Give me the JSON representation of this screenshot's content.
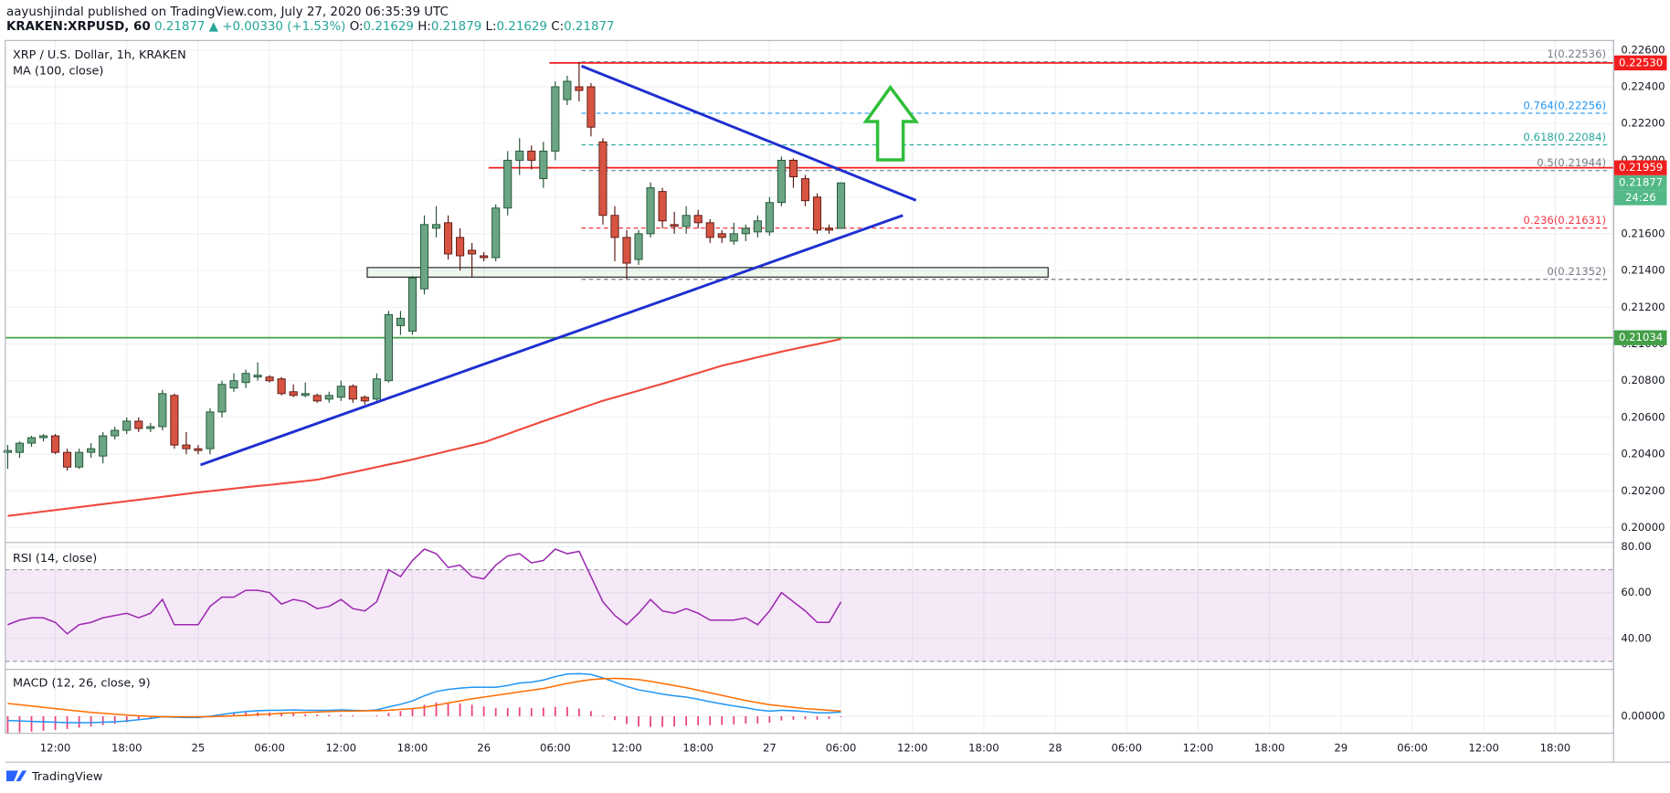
{
  "header": {
    "line1": "aayushjindal published on TradingView.com, July 27, 2020 06:35:39 UTC",
    "symbol": "KRAKEN:XRPUSD, 60",
    "last": "0.21877",
    "change": "▲ +0.00330 (+1.53%)",
    "ohlc": [
      {
        "label": "O:",
        "value": "0.21629"
      },
      {
        "label": "H:",
        "value": "0.21879"
      },
      {
        "label": "L:",
        "value": "0.21629"
      },
      {
        "label": "C:",
        "value": "0.21877"
      }
    ]
  },
  "footer": "TradingView",
  "chart_data": [
    {
      "type": "candlestick",
      "title": "XRP / U.S. Dollar, 1h, KRAKEN",
      "up_color": "#6ba583",
      "down_color": "#d75442",
      "grid": true,
      "open": [
        0.2041,
        0.2041,
        0.2046,
        0.2049,
        0.205,
        0.2041,
        0.2033,
        0.2041,
        0.2039,
        0.205,
        0.2053,
        0.2058,
        0.2054,
        0.2055,
        0.2072,
        0.2045,
        0.2043,
        0.2043,
        0.2063,
        0.2076,
        0.2079,
        0.2082,
        0.2082,
        0.2081,
        0.2074,
        0.2072,
        0.2072,
        0.207,
        0.2071,
        0.2077,
        0.2071,
        0.207,
        0.208,
        0.211,
        0.2107,
        0.213,
        0.2163,
        0.2166,
        0.2158,
        0.2151,
        0.2148,
        0.2147,
        0.2174,
        0.22,
        0.2205,
        0.219,
        0.2205,
        0.2233,
        0.224,
        0.224,
        0.221,
        0.217,
        0.2158,
        0.2146,
        0.216,
        0.2183,
        0.2165,
        0.2164,
        0.217,
        0.2166,
        0.216,
        0.2156,
        0.216,
        0.2161,
        0.2161,
        0.2177,
        0.22,
        0.219,
        0.218,
        0.2163,
        0.21629
      ],
      "high": [
        0.2045,
        0.2047,
        0.205,
        0.2051,
        0.2051,
        0.2043,
        0.2043,
        0.2046,
        0.2052,
        0.2055,
        0.206,
        0.206,
        0.2057,
        0.2075,
        0.2073,
        0.2052,
        0.2045,
        0.2065,
        0.208,
        0.2084,
        0.2086,
        0.209,
        0.2083,
        0.2082,
        0.2078,
        0.2079,
        0.2073,
        0.2074,
        0.208,
        0.2078,
        0.2072,
        0.2084,
        0.2118,
        0.2118,
        0.2137,
        0.217,
        0.2175,
        0.217,
        0.2163,
        0.2155,
        0.215,
        0.2176,
        0.2205,
        0.2212,
        0.2208,
        0.221,
        0.2243,
        0.2246,
        0.22536,
        0.2242,
        0.2212,
        0.2175,
        0.2162,
        0.2162,
        0.2188,
        0.2185,
        0.2172,
        0.2175,
        0.2173,
        0.2168,
        0.2162,
        0.2166,
        0.2165,
        0.217,
        0.218,
        0.2202,
        0.2201,
        0.2192,
        0.2182,
        0.2165,
        0.21879
      ],
      "low": [
        0.2032,
        0.2038,
        0.2044,
        0.2047,
        0.204,
        0.2031,
        0.2032,
        0.2038,
        0.2035,
        0.2048,
        0.2051,
        0.2052,
        0.2052,
        0.2053,
        0.2043,
        0.204,
        0.204,
        0.204,
        0.206,
        0.2074,
        0.2076,
        0.208,
        0.2079,
        0.2072,
        0.2071,
        0.2071,
        0.2068,
        0.2068,
        0.2069,
        0.2068,
        0.2067,
        0.2069,
        0.2079,
        0.2105,
        0.2105,
        0.2127,
        0.2158,
        0.2146,
        0.214,
        0.2136,
        0.2145,
        0.2145,
        0.217,
        0.2192,
        0.2195,
        0.2185,
        0.22,
        0.223,
        0.2232,
        0.2213,
        0.2165,
        0.2145,
        0.21352,
        0.2143,
        0.2158,
        0.2163,
        0.216,
        0.216,
        0.2163,
        0.2155,
        0.2155,
        0.2154,
        0.2156,
        0.2158,
        0.2159,
        0.2175,
        0.2185,
        0.2175,
        0.216,
        0.216,
        0.21629
      ],
      "close": [
        0.2042,
        0.2046,
        0.2049,
        0.205,
        0.2041,
        0.2033,
        0.2041,
        0.2043,
        0.205,
        0.2053,
        0.2058,
        0.2054,
        0.2055,
        0.2073,
        0.2045,
        0.2043,
        0.2042,
        0.2063,
        0.2078,
        0.208,
        0.2084,
        0.2083,
        0.208,
        0.2073,
        0.2072,
        0.2073,
        0.2069,
        0.2072,
        0.2077,
        0.207,
        0.2069,
        0.2081,
        0.2116,
        0.2114,
        0.2136,
        0.2165,
        0.2165,
        0.2149,
        0.2148,
        0.2149,
        0.2147,
        0.2174,
        0.22,
        0.2205,
        0.22,
        0.2205,
        0.224,
        0.2243,
        0.2238,
        0.2218,
        0.217,
        0.2158,
        0.2144,
        0.216,
        0.2185,
        0.2167,
        0.2164,
        0.217,
        0.2166,
        0.2158,
        0.2158,
        0.216,
        0.2163,
        0.2167,
        0.2177,
        0.22,
        0.2191,
        0.2178,
        0.2162,
        0.2162,
        0.21877
      ],
      "overlays": [
        {
          "name": "MA (100, close)",
          "color": "#f0483e",
          "values": [
            0.20064,
            0.20072,
            0.2008,
            0.20088,
            0.20096,
            0.20104,
            0.20112,
            0.2012,
            0.20128,
            0.20136,
            0.20144,
            0.20152,
            0.2016,
            0.20168,
            0.20176,
            0.20184,
            0.20192,
            0.20199,
            0.20206,
            0.20213,
            0.2022,
            0.20227,
            0.20233,
            0.2024,
            0.20247,
            0.20254,
            0.20261,
            0.20275,
            0.20289,
            0.20302,
            0.20316,
            0.2033,
            0.20344,
            0.20357,
            0.20371,
            0.20387,
            0.20402,
            0.20418,
            0.20433,
            0.20449,
            0.20464,
            0.20487,
            0.2051,
            0.20534,
            0.20557,
            0.2058,
            0.20602,
            0.20624,
            0.20647,
            0.20669,
            0.20691,
            0.20709,
            0.20728,
            0.20746,
            0.20765,
            0.20783,
            0.20803,
            0.20823,
            0.20842,
            0.20862,
            0.20882,
            0.20897,
            0.20912,
            0.20928,
            0.20943,
            0.20958,
            0.20972,
            0.20986,
            0.20999,
            0.21013,
            0.21027
          ]
        }
      ],
      "xlim": [
        -0.2,
        134.9
      ],
      "xticks": [
        {
          "value": 4,
          "label": "12:00"
        },
        {
          "value": 10,
          "label": "18:00"
        },
        {
          "value": 16,
          "label": "25"
        },
        {
          "value": 22,
          "label": "06:00"
        },
        {
          "value": 28,
          "label": "12:00"
        },
        {
          "value": 34,
          "label": "18:00"
        },
        {
          "value": 40,
          "label": "26"
        },
        {
          "value": 46,
          "label": "06:00"
        },
        {
          "value": 52,
          "label": "12:00"
        },
        {
          "value": 58,
          "label": "18:00"
        },
        {
          "value": 64,
          "label": "27"
        },
        {
          "value": 70,
          "label": "06:00"
        },
        {
          "value": 76,
          "label": "12:00"
        },
        {
          "value": 82,
          "label": "18:00"
        },
        {
          "value": 88,
          "label": "28"
        },
        {
          "value": 94,
          "label": "06:00"
        },
        {
          "value": 100,
          "label": "12:00"
        },
        {
          "value": 106,
          "label": "18:00"
        },
        {
          "value": 112,
          "label": "29"
        },
        {
          "value": 118,
          "label": "06:00"
        },
        {
          "value": 124,
          "label": "12:00"
        },
        {
          "value": 130,
          "label": "18:00"
        }
      ],
      "ylim": [
        0.19925,
        0.22652
      ],
      "yticks": [
        {
          "value": 0.226,
          "label": "0.22600"
        },
        {
          "value": 0.224,
          "label": "0.22400"
        },
        {
          "value": 0.222,
          "label": "0.22200"
        },
        {
          "value": 0.22,
          "label": "0.22000"
        },
        {
          "value": 0.218,
          "label": "0.21800"
        },
        {
          "value": 0.216,
          "label": "0.21600"
        },
        {
          "value": 0.214,
          "label": "0.21400"
        },
        {
          "value": 0.212,
          "label": "0.21200"
        },
        {
          "value": 0.21,
          "label": "0.21000"
        },
        {
          "value": 0.208,
          "label": "0.20800"
        },
        {
          "value": 0.206,
          "label": "0.20600"
        },
        {
          "value": 0.204,
          "label": "0.20400"
        },
        {
          "value": 0.202,
          "label": "0.20200"
        },
        {
          "value": 0.2,
          "label": "0.20000"
        }
      ],
      "fib": {
        "from": 48.2,
        "levels": [
          {
            "value": 0.22536,
            "label": "1(0.22536)",
            "color": "#787b86"
          },
          {
            "value": 0.22256,
            "label": "0.764(0.22256)",
            "color": "#2196f3"
          },
          {
            "value": 0.22084,
            "label": "0.618(0.22084)",
            "color": "#26a69a"
          },
          {
            "value": 0.21944,
            "label": "0.5(0.21944)",
            "color": "#787b86"
          },
          {
            "value": 0.21631,
            "label": "0.236(0.21631)",
            "color": "#f23645"
          },
          {
            "value": 0.21352,
            "label": "0(0.21352)",
            "color": "#787b86"
          }
        ]
      },
      "hlines": [
        {
          "value": 0.2253,
          "label": "0.22530",
          "color": "#f21d1d",
          "from": 45.5
        },
        {
          "value": 0.21959,
          "label": "0.21959",
          "color": "#f21d1d",
          "from": 40.4
        },
        {
          "value": 0.21034,
          "label": "0.21034",
          "color": "#43a047"
        }
      ],
      "last": {
        "value": 0.21877,
        "label": "0.21877",
        "countdown": "24:26",
        "color": "#53b987"
      },
      "trendlines": [
        {
          "color": "#1e2fd0",
          "x": [
            16.2,
            75.2
          ],
          "y": [
            0.20342,
            0.217
          ]
        },
        {
          "color": "#1e2fd0",
          "x": [
            48.2,
            76.3
          ],
          "y": [
            0.22513,
            0.21782
          ]
        }
      ],
      "zone": {
        "x": [
          30.2,
          87.4
        ],
        "y": [
          0.21364,
          0.21416
        ]
      }
    },
    {
      "type": "line",
      "title": "RSI (14, close)",
      "color": "#9c27b0",
      "band": [
        30,
        70
      ],
      "ylim": [
        26.5,
        81.4
      ],
      "yticks": [
        {
          "value": 80,
          "label": "80.00"
        },
        {
          "value": 60,
          "label": "60.00"
        },
        {
          "value": 40,
          "label": "40.00"
        }
      ],
      "values": [
        46,
        48,
        49,
        49,
        47,
        42,
        46,
        47,
        49,
        50,
        51,
        49,
        51,
        57,
        46,
        46,
        46,
        54,
        58,
        58,
        61,
        61,
        60,
        55,
        57,
        56,
        53,
        54,
        57,
        53,
        52,
        56,
        70,
        67,
        74,
        79,
        77,
        71,
        72,
        67,
        66,
        72,
        76,
        77,
        73,
        74,
        79,
        77,
        78,
        67,
        56,
        50,
        46,
        51,
        57,
        52,
        51,
        53,
        51,
        48,
        48,
        48,
        49,
        46,
        52,
        60,
        56,
        52,
        47,
        47,
        56
      ]
    },
    {
      "type": "macd",
      "title": "MACD (12, 26, close, 9)",
      "ylim": [
        -0.0004,
        0.0011
      ],
      "yticks": [
        {
          "value": 0,
          "label": "0.00000"
        }
      ],
      "series": [
        {
          "type": "bar",
          "color": "#ec407a",
          "values": [
            -0.0004,
            -0.00038,
            -0.00036,
            -0.00034,
            -0.00032,
            -0.0003,
            -0.00027,
            -0.00024,
            -0.00021,
            -0.00018,
            -0.00014,
            -9e-05,
            -5e-05,
            0,
            -1e-05,
            -2e-05,
            -2e-05,
            1e-05,
            4e-05,
            7e-05,
            9e-05,
            9e-05,
            9e-05,
            7e-05,
            7e-05,
            5e-05,
            4e-05,
            3e-05,
            3e-05,
            2e-05,
            0,
            2e-05,
            8e-05,
            0.00012,
            0.00018,
            0.00027,
            0.00032,
            0.00032,
            0.0003,
            0.00027,
            0.00023,
            0.00019,
            0.00019,
            0.00021,
            0.00019,
            0.0002,
            0.00022,
            0.00022,
            0.00018,
            0.00012,
            2e-05,
            -9e-05,
            -0.00018,
            -0.00024,
            -0.00025,
            -0.00025,
            -0.00024,
            -0.00022,
            -0.00021,
            -0.00021,
            -0.0002,
            -0.00019,
            -0.00017,
            -0.00017,
            -0.00015,
            -0.0001,
            -8e-05,
            -7e-05,
            -8e-05,
            -6e-05,
            -2e-05
          ]
        },
        {
          "type": "line",
          "color": "#2196f3",
          "values": [
            -0.0001,
            -0.00011,
            -0.00012,
            -0.00013,
            -0.00014,
            -0.00015,
            -0.00015,
            -0.00015,
            -0.00014,
            -0.00013,
            -0.00011,
            -8e-05,
            -5e-05,
            -1e-05,
            -2e-05,
            -3e-05,
            -3e-05,
            0,
            4e-05,
            8e-05,
            0.00011,
            0.00013,
            0.00014,
            0.00014,
            0.00015,
            0.00014,
            0.00014,
            0.00014,
            0.00015,
            0.00014,
            0.00013,
            0.00015,
            0.00022,
            0.00028,
            0.00036,
            0.00048,
            0.00058,
            0.00063,
            0.00066,
            0.00068,
            0.00068,
            0.00068,
            0.00072,
            0.00078,
            0.0008,
            0.00085,
            0.00093,
            0.00099,
            0.001,
            0.00098,
            0.0009,
            0.0008,
            0.0007,
            0.00062,
            0.00057,
            0.00052,
            0.00048,
            0.00045,
            0.0004,
            0.00034,
            0.00029,
            0.00024,
            0.0002,
            0.00015,
            0.00012,
            0.00014,
            0.00013,
            0.00011,
            8e-05,
            8e-05,
            0.0001
          ]
        },
        {
          "type": "line",
          "color": "#ff6d00",
          "values": [
            0.0003,
            0.00027,
            0.00024,
            0.00021,
            0.00018,
            0.00015,
            0.00012,
            9e-05,
            7e-05,
            5e-05,
            3e-05,
            1e-05,
            0,
            -1e-05,
            -1e-05,
            -1e-05,
            -1e-05,
            -1e-05,
            0,
            1e-05,
            2e-05,
            4e-05,
            5e-05,
            7e-05,
            8e-05,
            9e-05,
            0.0001,
            0.00011,
            0.00012,
            0.00012,
            0.00013,
            0.00013,
            0.00014,
            0.00016,
            0.00018,
            0.00021,
            0.00026,
            0.00031,
            0.00036,
            0.00041,
            0.00045,
            0.00049,
            0.00053,
            0.00057,
            0.00061,
            0.00065,
            0.00071,
            0.00077,
            0.00082,
            0.00086,
            0.00088,
            0.00089,
            0.00088,
            0.00086,
            0.00082,
            0.00077,
            0.00072,
            0.00067,
            0.00061,
            0.00055,
            0.00049,
            0.00043,
            0.00037,
            0.00032,
            0.00027,
            0.00024,
            0.00021,
            0.00018,
            0.00016,
            0.00014,
            0.00012
          ]
        }
      ]
    }
  ]
}
